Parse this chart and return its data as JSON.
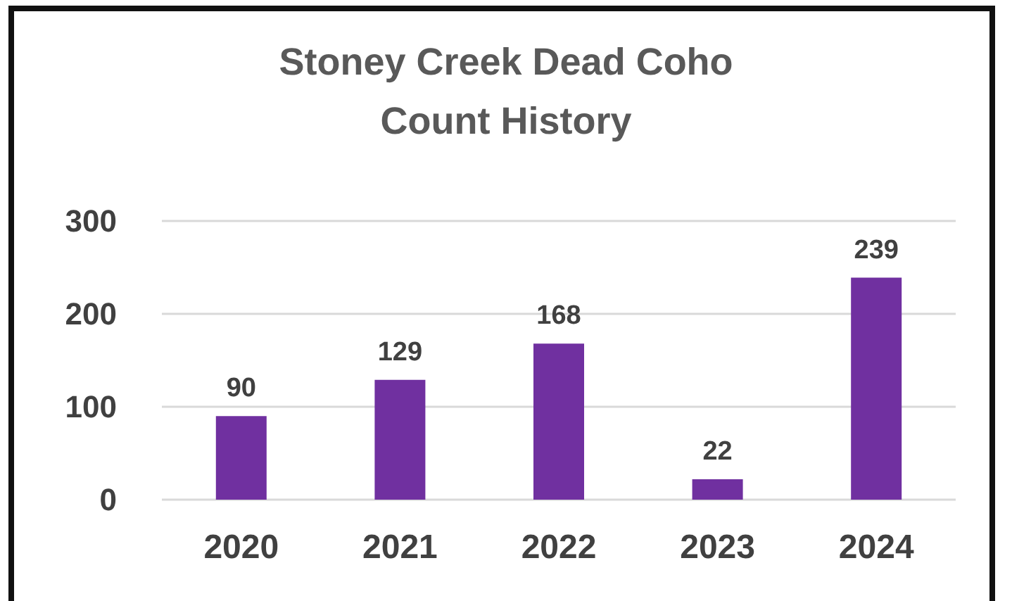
{
  "chart_data": {
    "type": "bar",
    "title": "Stoney Creek Dead Coho\nCount History",
    "categories": [
      "2020",
      "2021",
      "2022",
      "2023",
      "2024"
    ],
    "values": [
      90,
      129,
      168,
      22,
      239
    ],
    "color": "#7030a0",
    "ylim": [
      0,
      300
    ],
    "yticks": [
      0,
      100,
      200,
      300
    ],
    "grid": "y",
    "data_labels": true
  }
}
